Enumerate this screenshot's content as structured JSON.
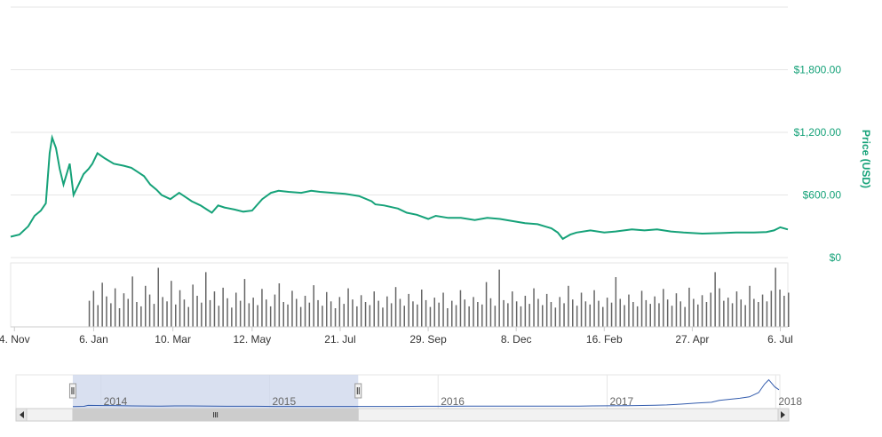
{
  "chart_data": {
    "type": "line",
    "y_axis": {
      "title": "Price (USD)",
      "ticks": [
        "$0",
        "$600.00",
        "$1,200.00",
        "$1,800.00"
      ],
      "tick_values": [
        0,
        600,
        1200,
        1800
      ],
      "range": [
        0,
        2400
      ],
      "position": "right",
      "grid": true
    },
    "x_axis": {
      "ticks": [
        "4. Nov",
        "6. Jan",
        "10. Mar",
        "12. May",
        "21. Jul",
        "29. Sep",
        "8. Dec",
        "16. Feb",
        "27. Apr",
        "6. Jul"
      ],
      "tick_dates": [
        "2013-11-04",
        "2014-01-06",
        "2014-03-10",
        "2014-05-12",
        "2014-07-21",
        "2014-09-29",
        "2014-12-08",
        "2015-02-16",
        "2015-04-27",
        "2015-07-06"
      ],
      "range": [
        "2013-11-01",
        "2015-07-12"
      ]
    },
    "price_series": {
      "color": "#16a279",
      "x": [
        "2013-11-01",
        "2013-11-08",
        "2013-11-15",
        "2013-11-20",
        "2013-11-25",
        "2013-11-29",
        "2013-12-02",
        "2013-12-04",
        "2013-12-07",
        "2013-12-10",
        "2013-12-13",
        "2013-12-18",
        "2013-12-21",
        "2013-12-25",
        "2013-12-29",
        "2014-01-02",
        "2014-01-05",
        "2014-01-09",
        "2014-01-15",
        "2014-01-22",
        "2014-01-30",
        "2014-02-05",
        "2014-02-10",
        "2014-02-15",
        "2014-02-20",
        "2014-02-25",
        "2014-03-01",
        "2014-03-08",
        "2014-03-15",
        "2014-03-20",
        "2014-03-25",
        "2014-04-01",
        "2014-04-06",
        "2014-04-10",
        "2014-04-15",
        "2014-04-20",
        "2014-04-28",
        "2014-05-05",
        "2014-05-12",
        "2014-05-20",
        "2014-05-27",
        "2014-06-02",
        "2014-06-10",
        "2014-06-20",
        "2014-06-28",
        "2014-07-05",
        "2014-07-15",
        "2014-07-25",
        "2014-08-05",
        "2014-08-15",
        "2014-08-18",
        "2014-08-25",
        "2014-09-05",
        "2014-09-12",
        "2014-09-20",
        "2014-09-29",
        "2014-10-05",
        "2014-10-15",
        "2014-10-25",
        "2014-11-05",
        "2014-11-15",
        "2014-11-25",
        "2014-12-05",
        "2014-12-15",
        "2014-12-25",
        "2015-01-05",
        "2015-01-10",
        "2015-01-14",
        "2015-01-20",
        "2015-01-25",
        "2015-02-05",
        "2015-02-16",
        "2015-02-25",
        "2015-03-10",
        "2015-03-20",
        "2015-03-30",
        "2015-04-10",
        "2015-04-20",
        "2015-05-05",
        "2015-05-20",
        "2015-06-01",
        "2015-06-15",
        "2015-06-25",
        "2015-07-01",
        "2015-07-06",
        "2015-07-12"
      ],
      "y": [
        200,
        220,
        300,
        400,
        450,
        520,
        1000,
        1150,
        1050,
        850,
        700,
        900,
        600,
        700,
        800,
        850,
        900,
        1000,
        950,
        900,
        880,
        860,
        820,
        780,
        700,
        650,
        600,
        560,
        620,
        580,
        540,
        500,
        460,
        430,
        500,
        480,
        460,
        440,
        450,
        560,
        620,
        640,
        630,
        620,
        640,
        630,
        620,
        610,
        590,
        540,
        510,
        500,
        470,
        430,
        410,
        370,
        400,
        380,
        380,
        360,
        380,
        370,
        350,
        330,
        320,
        280,
        240,
        180,
        220,
        240,
        260,
        240,
        250,
        270,
        260,
        270,
        250,
        240,
        230,
        235,
        240,
        240,
        245,
        260,
        290,
        270
      ]
    },
    "volume": {
      "color": "#666666",
      "start": "2014-01-02",
      "end": "2015-07-12",
      "values": [
        0.42,
        0.58,
        0.35,
        0.71,
        0.49,
        0.38,
        0.62,
        0.3,
        0.54,
        0.45,
        0.81,
        0.4,
        0.33,
        0.66,
        0.52,
        0.37,
        0.95,
        0.48,
        0.41,
        0.74,
        0.36,
        0.59,
        0.44,
        0.32,
        0.68,
        0.5,
        0.39,
        0.88,
        0.43,
        0.57,
        0.34,
        0.63,
        0.46,
        0.31,
        0.55,
        0.42,
        0.77,
        0.38,
        0.47,
        0.35,
        0.61,
        0.44,
        0.33,
        0.52,
        0.7,
        0.4,
        0.36,
        0.58,
        0.45,
        0.32,
        0.5,
        0.39,
        0.67,
        0.43,
        0.34,
        0.56,
        0.41,
        0.3,
        0.48,
        0.37,
        0.62,
        0.44,
        0.33,
        0.51,
        0.4,
        0.35,
        0.57,
        0.42,
        0.31,
        0.49,
        0.38,
        0.64,
        0.45,
        0.34,
        0.53,
        0.41,
        0.36,
        0.6,
        0.43,
        0.32,
        0.47,
        0.39,
        0.55,
        0.3,
        0.42,
        0.35,
        0.59,
        0.44,
        0.33,
        0.48,
        0.4,
        0.36,
        0.72,
        0.46,
        0.34,
        0.92,
        0.43,
        0.38,
        0.57,
        0.41,
        0.33,
        0.5,
        0.37,
        0.62,
        0.45,
        0.35,
        0.53,
        0.4,
        0.31,
        0.48,
        0.38,
        0.66,
        0.44,
        0.34,
        0.55,
        0.41,
        0.36,
        0.59,
        0.42,
        0.32,
        0.47,
        0.39,
        0.8,
        0.45,
        0.35,
        0.52,
        0.4,
        0.33,
        0.58,
        0.43,
        0.37,
        0.49,
        0.38,
        0.61,
        0.44,
        0.34,
        0.54,
        0.41,
        0.32,
        0.63,
        0.45,
        0.36,
        0.51,
        0.4,
        0.55,
        0.88,
        0.62,
        0.42,
        0.47,
        0.38,
        0.57,
        0.44,
        0.35,
        0.66,
        0.45,
        0.4,
        0.52,
        0.41,
        0.58,
        0.95,
        0.6,
        0.5,
        0.55
      ]
    }
  },
  "navigator": {
    "years": [
      "2014",
      "2015",
      "2016",
      "2017",
      "2018"
    ],
    "year_dates": [
      "2014-01-01",
      "2015-01-01",
      "2016-01-01",
      "2017-01-01",
      "2018-01-01"
    ],
    "range": [
      "2013-07-01",
      "2018-01-10"
    ],
    "selection": [
      "2013-11-01",
      "2015-07-12"
    ],
    "series_color": "#335cad",
    "mask_color": "#ccd6eb",
    "series_y": [
      200,
      220,
      300,
      1000,
      900,
      800,
      600,
      480,
      450,
      600,
      620,
      500,
      380,
      350,
      280,
      240,
      250,
      260,
      270,
      250,
      260,
      300,
      350,
      380,
      430,
      420,
      450,
      420,
      450,
      520,
      600,
      700,
      780,
      900,
      1100,
      1300,
      1900,
      2700,
      3200,
      4500,
      6000,
      7000,
      10000,
      16000,
      19000,
      14000,
      12000
    ],
    "series_x": [
      "2013-11-01",
      "2013-11-15",
      "2013-11-25",
      "2013-12-04",
      "2014-01-10",
      "2014-02-10",
      "2014-03-10",
      "2014-05-01",
      "2014-05-12",
      "2014-06-10",
      "2014-07-10",
      "2014-09-01",
      "2014-10-15",
      "2014-12-01",
      "2015-01-14",
      "2015-02-01",
      "2015-04-01",
      "2015-06-01",
      "2015-07-10",
      "2015-08-20",
      "2015-10-01",
      "2015-11-05",
      "2015-12-01",
      "2016-01-01",
      "2016-03-01",
      "2016-05-01",
      "2016-06-20",
      "2016-08-01",
      "2016-10-01",
      "2016-11-01",
      "2016-12-01",
      "2017-01-05",
      "2017-02-15",
      "2017-03-05",
      "2017-04-15",
      "2017-05-10",
      "2017-06-10",
      "2017-07-15",
      "2017-08-15",
      "2017-09-01",
      "2017-10-15",
      "2017-11-05",
      "2017-11-25",
      "2017-12-08",
      "2017-12-17",
      "2017-12-30",
      "2018-01-08"
    ],
    "y_max": 20000
  }
}
